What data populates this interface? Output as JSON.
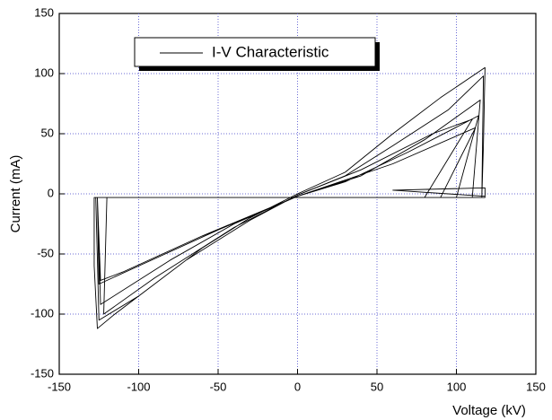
{
  "chart_data": {
    "type": "line",
    "xlabel": "Voltage (kV)",
    "ylabel": "Current (mA)",
    "xlim": [
      -150,
      150
    ],
    "xticks": [
      -150,
      -100,
      -50,
      0,
      50,
      100,
      150
    ],
    "ylim": [
      -150,
      150
    ],
    "yticks": [
      -150,
      -100,
      -50,
      0,
      50,
      100,
      150
    ],
    "grid": true,
    "legend": "top-left",
    "x": [
      -128,
      116,
      117,
      118,
      90,
      60,
      30,
      0,
      -30,
      -60,
      -90,
      -115,
      -126,
      -128,
      -128,
      116,
      117,
      95,
      60,
      30,
      0,
      -30,
      -70,
      -100,
      -125,
      -127,
      110,
      115,
      80,
      40,
      0,
      -40,
      -80,
      -124,
      -126,
      100,
      114,
      70,
      30,
      0,
      -50,
      -100,
      -125,
      -126,
      90,
      112,
      60,
      0,
      -60,
      -110,
      -124,
      -126,
      80,
      110,
      85,
      40,
      0,
      -40,
      -90,
      -122,
      -120,
      118,
      118,
      60,
      118
    ],
    "series": [
      {
        "name": "I-V Characteristic",
        "color": "#000000",
        "values": [
          -3,
          -3,
          40,
          105,
          80,
          50,
          18,
          0,
          -20,
          -45,
          -75,
          -100,
          -112,
          -60,
          -3,
          -3,
          98,
          70,
          40,
          15,
          -1,
          -22,
          -55,
          -85,
          -105,
          -3,
          -3,
          78,
          45,
          15,
          -2,
          -25,
          -55,
          -92,
          -3,
          -3,
          65,
          35,
          10,
          -2,
          -30,
          -60,
          -75,
          -3,
          -3,
          55,
          25,
          -2,
          -35,
          -65,
          -72,
          -3,
          -3,
          62,
          50,
          20,
          -1,
          -28,
          -70,
          -100,
          -3,
          -3,
          5,
          3,
          -2
        ]
      }
    ]
  }
}
